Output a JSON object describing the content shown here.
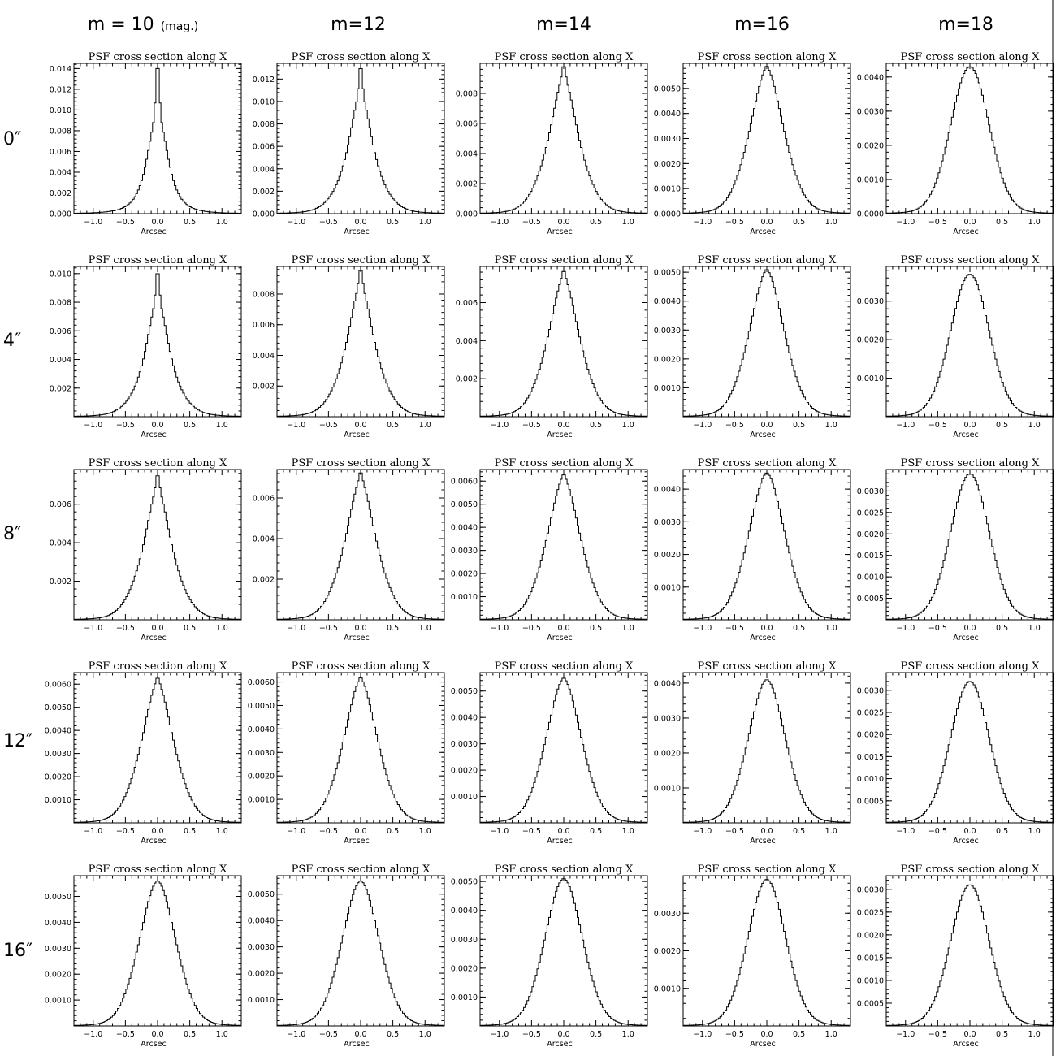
{
  "col_labels": [
    {
      "main": "m = 10",
      "sub": "(mag.)"
    },
    {
      "main": "m=12",
      "sub": ""
    },
    {
      "main": "m=14",
      "sub": ""
    },
    {
      "main": "m=16",
      "sub": ""
    },
    {
      "main": "m=18",
      "sub": ""
    }
  ],
  "row_labels": [
    "0″",
    "4″",
    "8″",
    "12″",
    "16″"
  ],
  "chart_data": [
    {
      "type": "line",
      "row": 0,
      "col": 0,
      "title": "PSF cross section along X",
      "xlabel": "Arcsec",
      "xlim": [
        -1.3,
        1.3
      ],
      "ylim": [
        0,
        0.0145
      ],
      "yticks": [
        0,
        0.002,
        0.004,
        0.006,
        0.008,
        0.01,
        0.012,
        0.014
      ],
      "ytick_labels": [
        "0.000",
        "0.002",
        "0.004",
        "0.006",
        "0.008",
        "0.010",
        "0.012",
        "0.014"
      ],
      "xticks": [
        -1.0,
        -0.5,
        0.0,
        0.5,
        1.0
      ],
      "xtick_labels": [
        "−1.0",
        "−0.5",
        "0.0",
        "0.5",
        "1.0"
      ],
      "peak": 0.0147
    },
    {
      "type": "line",
      "row": 0,
      "col": 1,
      "title": "PSF cross section along X",
      "xlabel": "Arcsec",
      "xlim": [
        -1.3,
        1.3
      ],
      "ylim": [
        0,
        0.0134
      ],
      "yticks": [
        0,
        0.002,
        0.004,
        0.006,
        0.008,
        0.01,
        0.012
      ],
      "ytick_labels": [
        "0.000",
        "0.002",
        "0.004",
        "0.006",
        "0.008",
        "0.010",
        "0.012"
      ],
      "xticks": [
        -1.0,
        -0.5,
        0.0,
        0.5,
        1.0
      ],
      "xtick_labels": [
        "−1.0",
        "−0.5",
        "0.0",
        "0.5",
        "1.0"
      ],
      "peak": 0.0133
    },
    {
      "type": "line",
      "row": 0,
      "col": 2,
      "title": "PSF cross section along X",
      "xlabel": "Arcsec",
      "xlim": [
        -1.3,
        1.3
      ],
      "ylim": [
        0,
        0.01
      ],
      "yticks": [
        0,
        0.002,
        0.004,
        0.006,
        0.008
      ],
      "ytick_labels": [
        "0.000",
        "0.002",
        "0.004",
        "0.006",
        "0.008"
      ],
      "xticks": [
        -1.0,
        -0.5,
        0.0,
        0.5,
        1.0
      ],
      "xtick_labels": [
        "−1.0",
        "−0.5",
        "0.0",
        "0.5",
        "1.0"
      ],
      "peak": 0.0099
    },
    {
      "type": "line",
      "row": 0,
      "col": 3,
      "title": "PSF cross section along X",
      "xlabel": "Arcsec",
      "xlim": [
        -1.3,
        1.3
      ],
      "ylim": [
        0,
        0.006
      ],
      "yticks": [
        0,
        0.001,
        0.002,
        0.003,
        0.004,
        0.005
      ],
      "ytick_labels": [
        "0.0000",
        "0.0010",
        "0.0020",
        "0.0030",
        "0.0040",
        "0.0050"
      ],
      "xticks": [
        -1.0,
        -0.5,
        0.0,
        0.5,
        1.0
      ],
      "xtick_labels": [
        "−1.0",
        "−0.5",
        "0.0",
        "0.5",
        "1.0"
      ],
      "peak": 0.0059
    },
    {
      "type": "line",
      "row": 0,
      "col": 4,
      "title": "PSF cross section along X",
      "xlabel": "Arcsec",
      "xlim": [
        -1.3,
        1.3
      ],
      "ylim": [
        0,
        0.0044
      ],
      "yticks": [
        0,
        0.001,
        0.002,
        0.003,
        0.004
      ],
      "ytick_labels": [
        "0.0000",
        "0.0010",
        "0.0020",
        "0.0030",
        "0.0040"
      ],
      "xticks": [
        -1.0,
        -0.5,
        0.0,
        0.5,
        1.0
      ],
      "xtick_labels": [
        "−1.0",
        "−0.5",
        "0.0",
        "0.5",
        "1.0"
      ],
      "peak": 0.0043
    },
    {
      "type": "line",
      "row": 1,
      "col": 0,
      "title": "PSF cross section along X",
      "xlabel": "Arcsec",
      "xlim": [
        -1.3,
        1.3
      ],
      "ylim": [
        0,
        0.0105
      ],
      "yticks": [
        0.002,
        0.004,
        0.006,
        0.008,
        0.01
      ],
      "ytick_labels": [
        "0.002",
        "0.004",
        "0.006",
        "0.008",
        "0.010"
      ],
      "xticks": [
        -1.0,
        -0.5,
        0.0,
        0.5,
        1.0
      ],
      "xtick_labels": [
        "−1.0",
        "−0.5",
        "0.0",
        "0.5",
        "1.0"
      ],
      "peak": 0.0103
    },
    {
      "type": "line",
      "row": 1,
      "col": 1,
      "title": "PSF cross section along X",
      "xlabel": "Arcsec",
      "xlim": [
        -1.3,
        1.3
      ],
      "ylim": [
        0,
        0.0098
      ],
      "yticks": [
        0.002,
        0.004,
        0.006,
        0.008
      ],
      "ytick_labels": [
        "0.002",
        "0.004",
        "0.006",
        "0.008"
      ],
      "xticks": [
        -1.0,
        -0.5,
        0.0,
        0.5,
        1.0
      ],
      "xtick_labels": [
        "−1.0",
        "−0.5",
        "0.0",
        "0.5",
        "1.0"
      ],
      "peak": 0.0097
    },
    {
      "type": "line",
      "row": 1,
      "col": 2,
      "title": "PSF cross section along X",
      "xlabel": "Arcsec",
      "xlim": [
        -1.3,
        1.3
      ],
      "ylim": [
        0,
        0.0079
      ],
      "yticks": [
        0.002,
        0.004,
        0.006
      ],
      "ytick_labels": [
        "0.002",
        "0.004",
        "0.006"
      ],
      "xticks": [
        -1.0,
        -0.5,
        0.0,
        0.5,
        1.0
      ],
      "xtick_labels": [
        "−1.0",
        "−0.5",
        "0.0",
        "0.5",
        "1.0"
      ],
      "peak": 0.0077
    },
    {
      "type": "line",
      "row": 1,
      "col": 3,
      "title": "PSF cross section along X",
      "xlabel": "Arcsec",
      "xlim": [
        -1.3,
        1.3
      ],
      "ylim": [
        0,
        0.0052
      ],
      "yticks": [
        0.001,
        0.002,
        0.003,
        0.004,
        0.005
      ],
      "ytick_labels": [
        "0.0010",
        "0.0020",
        "0.0030",
        "0.0040",
        "0.0050"
      ],
      "xticks": [
        -1.0,
        -0.5,
        0.0,
        0.5,
        1.0
      ],
      "xtick_labels": [
        "−1.0",
        "−0.5",
        "0.0",
        "0.5",
        "1.0"
      ],
      "peak": 0.0051
    },
    {
      "type": "line",
      "row": 1,
      "col": 4,
      "title": "PSF cross section along X",
      "xlabel": "Arcsec",
      "xlim": [
        -1.3,
        1.3
      ],
      "ylim": [
        0,
        0.0039
      ],
      "yticks": [
        0.001,
        0.002,
        0.003
      ],
      "ytick_labels": [
        "0.0010",
        "0.0020",
        "0.0030"
      ],
      "xticks": [
        -1.0,
        -0.5,
        0.0,
        0.5,
        1.0
      ],
      "xtick_labels": [
        "−1.0",
        "−0.5",
        "0.0",
        "0.5",
        "1.0"
      ],
      "peak": 0.0037
    },
    {
      "type": "line",
      "row": 2,
      "col": 0,
      "title": "PSF cross section along X",
      "xlabel": "Arcsec",
      "xlim": [
        -1.3,
        1.3
      ],
      "ylim": [
        0,
        0.0078
      ],
      "yticks": [
        0.002,
        0.004,
        0.006
      ],
      "ytick_labels": [
        "0.002",
        "0.004",
        "0.006"
      ],
      "xticks": [
        -1.0,
        -0.5,
        0.0,
        0.5,
        1.0
      ],
      "xtick_labels": [
        "−1.0",
        "−0.5",
        "0.0",
        "0.5",
        "1.0"
      ],
      "peak": 0.0076
    },
    {
      "type": "line",
      "row": 2,
      "col": 1,
      "title": "PSF cross section along X",
      "xlabel": "Arcsec",
      "xlim": [
        -1.3,
        1.3
      ],
      "ylim": [
        0,
        0.0074
      ],
      "yticks": [
        0.002,
        0.004,
        0.006
      ],
      "ytick_labels": [
        "0.002",
        "0.004",
        "0.006"
      ],
      "xticks": [
        -1.0,
        -0.5,
        0.0,
        0.5,
        1.0
      ],
      "xtick_labels": [
        "−1.0",
        "−0.5",
        "0.0",
        "0.5",
        "1.0"
      ],
      "peak": 0.0073
    },
    {
      "type": "line",
      "row": 2,
      "col": 2,
      "title": "PSF cross section along X",
      "xlabel": "Arcsec",
      "xlim": [
        -1.3,
        1.3
      ],
      "ylim": [
        0,
        0.0065
      ],
      "yticks": [
        0.001,
        0.002,
        0.003,
        0.004,
        0.005,
        0.006
      ],
      "ytick_labels": [
        "0.0010",
        "0.0020",
        "0.0030",
        "0.0040",
        "0.0050",
        "0.0060"
      ],
      "xticks": [
        -1.0,
        -0.5,
        0.0,
        0.5,
        1.0
      ],
      "xtick_labels": [
        "−1.0",
        "−0.5",
        "0.0",
        "0.5",
        "1.0"
      ],
      "peak": 0.0063
    },
    {
      "type": "line",
      "row": 2,
      "col": 3,
      "title": "PSF cross section along X",
      "xlabel": "Arcsec",
      "xlim": [
        -1.3,
        1.3
      ],
      "ylim": [
        0,
        0.0046
      ],
      "yticks": [
        0.001,
        0.002,
        0.003,
        0.004
      ],
      "ytick_labels": [
        "0.0010",
        "0.0020",
        "0.0030",
        "0.0040"
      ],
      "xticks": [
        -1.0,
        -0.5,
        0.0,
        0.5,
        1.0
      ],
      "xtick_labels": [
        "−1.0",
        "−0.5",
        "0.0",
        "0.5",
        "1.0"
      ],
      "peak": 0.0045
    },
    {
      "type": "line",
      "row": 2,
      "col": 4,
      "title": "PSF cross section along X",
      "xlabel": "Arcsec",
      "xlim": [
        -1.3,
        1.3
      ],
      "ylim": [
        0,
        0.0035
      ],
      "yticks": [
        0.0005,
        0.001,
        0.0015,
        0.002,
        0.0025,
        0.003
      ],
      "ytick_labels": [
        "0.0005",
        "0.0010",
        "0.0015",
        "0.0020",
        "0.0025",
        "0.0030"
      ],
      "xticks": [
        -1.0,
        -0.5,
        0.0,
        0.5,
        1.0
      ],
      "xtick_labels": [
        "−1.0",
        "−0.5",
        "0.0",
        "0.5",
        "1.0"
      ],
      "peak": 0.0034
    },
    {
      "type": "line",
      "row": 3,
      "col": 0,
      "title": "PSF cross section along X",
      "xlabel": "Arcsec",
      "xlim": [
        -1.3,
        1.3
      ],
      "ylim": [
        0,
        0.0065
      ],
      "yticks": [
        0.001,
        0.002,
        0.003,
        0.004,
        0.005,
        0.006
      ],
      "ytick_labels": [
        "0.0010",
        "0.0020",
        "0.0030",
        "0.0040",
        "0.0050",
        "0.0060"
      ],
      "xticks": [
        -1.0,
        -0.5,
        0.0,
        0.5,
        1.0
      ],
      "xtick_labels": [
        "−1.0",
        "−0.5",
        "0.0",
        "0.5",
        "1.0"
      ],
      "peak": 0.0063
    },
    {
      "type": "line",
      "row": 3,
      "col": 1,
      "title": "PSF cross section along X",
      "xlabel": "Arcsec",
      "xlim": [
        -1.3,
        1.3
      ],
      "ylim": [
        0,
        0.0064
      ],
      "yticks": [
        0.001,
        0.002,
        0.003,
        0.004,
        0.005,
        0.006
      ],
      "ytick_labels": [
        "0.0010",
        "0.0020",
        "0.0030",
        "0.0040",
        "0.0050",
        "0.0060"
      ],
      "xticks": [
        -1.0,
        -0.5,
        0.0,
        0.5,
        1.0
      ],
      "xtick_labels": [
        "−1.0",
        "−0.5",
        "0.0",
        "0.5",
        "1.0"
      ],
      "peak": 0.0062
    },
    {
      "type": "line",
      "row": 3,
      "col": 2,
      "title": "PSF cross section along X",
      "xlabel": "Arcsec",
      "xlim": [
        -1.3,
        1.3
      ],
      "ylim": [
        0,
        0.0057
      ],
      "yticks": [
        0.001,
        0.002,
        0.003,
        0.004,
        0.005
      ],
      "ytick_labels": [
        "0.0010",
        "0.0020",
        "0.0030",
        "0.0040",
        "0.0050"
      ],
      "xticks": [
        -1.0,
        -0.5,
        0.0,
        0.5,
        1.0
      ],
      "xtick_labels": [
        "−1.0",
        "−0.5",
        "0.0",
        "0.5",
        "1.0"
      ],
      "peak": 0.0055
    },
    {
      "type": "line",
      "row": 3,
      "col": 3,
      "title": "PSF cross section along X",
      "xlabel": "Arcsec",
      "xlim": [
        -1.3,
        1.3
      ],
      "ylim": [
        0,
        0.0043
      ],
      "yticks": [
        0.001,
        0.002,
        0.003,
        0.004
      ],
      "ytick_labels": [
        "0.0010",
        "0.0020",
        "0.0030",
        "0.0040"
      ],
      "xticks": [
        -1.0,
        -0.5,
        0.0,
        0.5,
        1.0
      ],
      "xtick_labels": [
        "−1.0",
        "−0.5",
        "0.0",
        "0.5",
        "1.0"
      ],
      "peak": 0.0041
    },
    {
      "type": "line",
      "row": 3,
      "col": 4,
      "title": "PSF cross section along X",
      "xlabel": "Arcsec",
      "xlim": [
        -1.3,
        1.3
      ],
      "ylim": [
        0,
        0.0034
      ],
      "yticks": [
        0.0005,
        0.001,
        0.0015,
        0.002,
        0.0025,
        0.003
      ],
      "ytick_labels": [
        "0.0005",
        "0.0010",
        "0.0015",
        "0.0020",
        "0.0025",
        "0.0030"
      ],
      "xticks": [
        -1.0,
        -0.5,
        0.0,
        0.5,
        1.0
      ],
      "xtick_labels": [
        "−1.0",
        "−0.5",
        "0.0",
        "0.5",
        "1.0"
      ],
      "peak": 0.0032
    },
    {
      "type": "line",
      "row": 4,
      "col": 0,
      "title": "PSF cross section along X",
      "xlabel": "Arcsec",
      "xlim": [
        -1.3,
        1.3
      ],
      "ylim": [
        0,
        0.0058
      ],
      "yticks": [
        0.001,
        0.002,
        0.003,
        0.004,
        0.005
      ],
      "ytick_labels": [
        "0.0010",
        "0.0020",
        "0.0030",
        "0.0040",
        "0.0050"
      ],
      "xticks": [
        -1.0,
        -0.5,
        0.0,
        0.5,
        1.0
      ],
      "xtick_labels": [
        "−1.0",
        "−0.5",
        "0.0",
        "0.5",
        "1.0"
      ],
      "peak": 0.0056
    },
    {
      "type": "line",
      "row": 4,
      "col": 1,
      "title": "PSF cross section along X",
      "xlabel": "Arcsec",
      "xlim": [
        -1.3,
        1.3
      ],
      "ylim": [
        0,
        0.0057
      ],
      "yticks": [
        0.001,
        0.002,
        0.003,
        0.004,
        0.005
      ],
      "ytick_labels": [
        "0.0010",
        "0.0020",
        "0.0030",
        "0.0040",
        "0.0050"
      ],
      "xticks": [
        -1.0,
        -0.5,
        0.0,
        0.5,
        1.0
      ],
      "xtick_labels": [
        "−1.0",
        "−0.5",
        "0.0",
        "0.5",
        "1.0"
      ],
      "peak": 0.0055
    },
    {
      "type": "line",
      "row": 4,
      "col": 2,
      "title": "PSF cross section along X",
      "xlabel": "Arcsec",
      "xlim": [
        -1.3,
        1.3
      ],
      "ylim": [
        0,
        0.0052
      ],
      "yticks": [
        0.001,
        0.002,
        0.003,
        0.004,
        0.005
      ],
      "ytick_labels": [
        "0.0010",
        "0.0020",
        "0.0030",
        "0.0040",
        "0.0050"
      ],
      "xticks": [
        -1.0,
        -0.5,
        0.0,
        0.5,
        1.0
      ],
      "xtick_labels": [
        "−1.0",
        "−0.5",
        "0.0",
        "0.5",
        "1.0"
      ],
      "peak": 0.0051
    },
    {
      "type": "line",
      "row": 4,
      "col": 3,
      "title": "PSF cross section along X",
      "xlabel": "Arcsec",
      "xlim": [
        -1.3,
        1.3
      ],
      "ylim": [
        0,
        0.004
      ],
      "yticks": [
        0.001,
        0.002,
        0.003
      ],
      "ytick_labels": [
        "0.0010",
        "0.0020",
        "0.0030"
      ],
      "xticks": [
        -1.0,
        -0.5,
        0.0,
        0.5,
        1.0
      ],
      "xtick_labels": [
        "−1.0",
        "−0.5",
        "0.0",
        "0.5",
        "1.0"
      ],
      "peak": 0.0039
    },
    {
      "type": "line",
      "row": 4,
      "col": 4,
      "title": "PSF cross section along X",
      "xlabel": "Arcsec",
      "xlim": [
        -1.3,
        1.3
      ],
      "ylim": [
        0,
        0.0033
      ],
      "yticks": [
        0.0005,
        0.001,
        0.0015,
        0.002,
        0.0025,
        0.003
      ],
      "ytick_labels": [
        "0.0005",
        "0.0010",
        "0.0015",
        "0.0020",
        "0.0025",
        "0.0030"
      ],
      "xticks": [
        -1.0,
        -0.5,
        0.0,
        0.5,
        1.0
      ],
      "xtick_labels": [
        "−1.0",
        "−0.5",
        "0.0",
        "0.5",
        "1.0"
      ],
      "peak": 0.0031
    }
  ]
}
